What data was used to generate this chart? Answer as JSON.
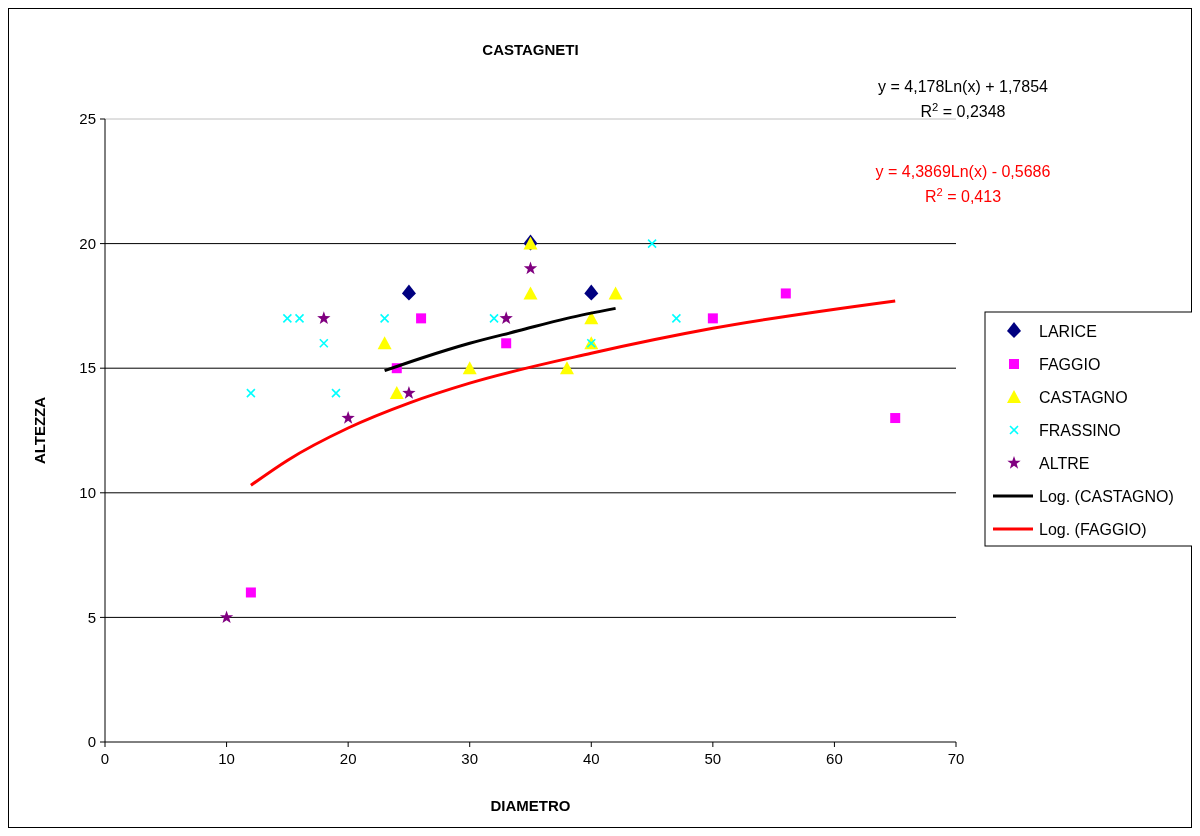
{
  "chart_data": {
    "type": "scatter",
    "title": "CASTAGNETI",
    "xlabel": "DIAMETRO",
    "ylabel": "ALTEZZA",
    "xlim": [
      0,
      70
    ],
    "xticks": [
      0,
      10,
      20,
      30,
      40,
      50,
      60,
      70
    ],
    "ylim": [
      0,
      25
    ],
    "yticks": [
      0,
      5,
      10,
      15,
      20,
      25
    ],
    "grid": "y",
    "legend": "right",
    "annotations": [
      "y = 4,178Ln(x) + 1,7854",
      "R$^{2}$ = 0,2348",
      "y = 4,3869Ln(x) - 0,5686",
      "R$^{2}$ = 0,413"
    ],
    "series": [
      {
        "name": "LARICE",
        "color": "#000080",
        "marker": "diamond",
        "x": [
          25,
          35,
          40
        ],
        "values": [
          18,
          20,
          18
        ]
      },
      {
        "name": "FAGGIO",
        "color": "#ff00ff",
        "marker": "square",
        "x": [
          12,
          24,
          26,
          33,
          50,
          56,
          65
        ],
        "values": [
          6,
          15,
          17,
          16,
          17,
          18,
          13
        ]
      },
      {
        "name": "CASTAGNO",
        "color": "#ffff00",
        "marker": "triangle",
        "x": [
          23,
          24,
          30,
          35,
          35,
          38,
          40,
          40,
          42
        ],
        "values": [
          16,
          14,
          15,
          20,
          18,
          15,
          17,
          16,
          18
        ]
      },
      {
        "name": "FRASSINO",
        "color": "#00ffff",
        "marker": "cross",
        "x": [
          12,
          15,
          16,
          18,
          19,
          23,
          32,
          40,
          45,
          47
        ],
        "values": [
          14,
          17,
          17,
          16,
          14,
          17,
          17,
          16,
          20,
          17
        ]
      },
      {
        "name": "ALTRE",
        "color": "#800080",
        "marker": "star",
        "x": [
          10,
          18,
          20,
          25,
          33,
          35
        ],
        "values": [
          5,
          17,
          13,
          14,
          17,
          19
        ]
      },
      {
        "name": "Log. (CASTAGNO)",
        "type": "line",
        "color": "#000000",
        "x": [
          23,
          26,
          30,
          34,
          38,
          42
        ],
        "values": [
          14.9,
          15.4,
          16,
          16.5,
          17,
          17.4
        ]
      },
      {
        "name": "Log. (FAGGIO)",
        "type": "line",
        "color": "#ff0000",
        "x": [
          12,
          15,
          20,
          25,
          30,
          40,
          50,
          65
        ],
        "values": [
          10.3,
          11.3,
          12.6,
          13.6,
          14.4,
          15.6,
          16.6,
          17.7
        ]
      }
    ]
  }
}
